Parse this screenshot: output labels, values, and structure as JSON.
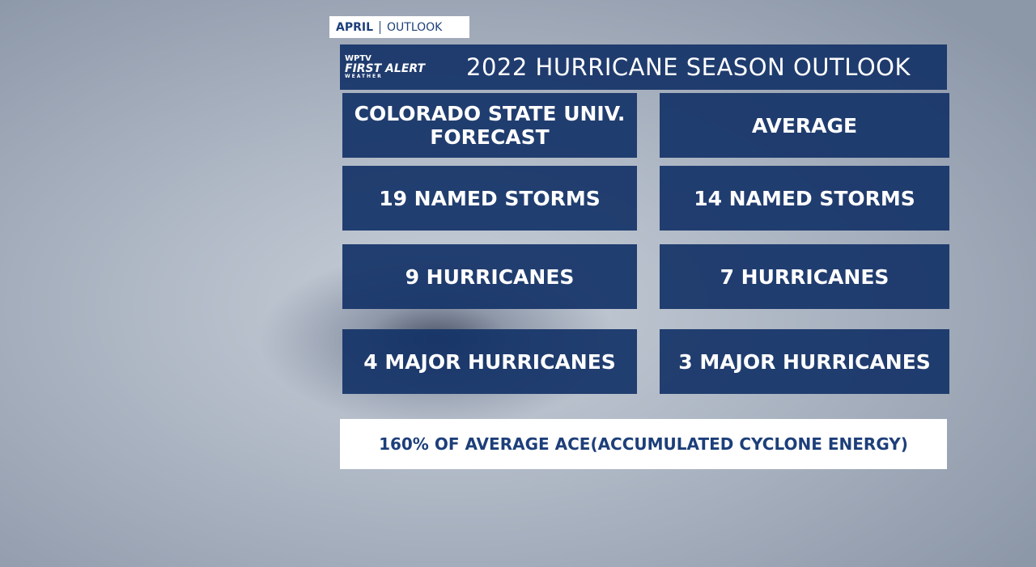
{
  "tag": {
    "month": "APRIL",
    "label": "OUTLOOK"
  },
  "logo": {
    "station": "WPTV",
    "brand": "FIRST ALERT",
    "sub": "WEATHER"
  },
  "header": {
    "title": "2022 HURRICANE SEASON OUTLOOK"
  },
  "table": {
    "columns": [
      "COLORADO STATE UNIV. FORECAST",
      "AVERAGE"
    ],
    "rows": [
      [
        "19 NAMED STORMS",
        "14 NAMED STORMS"
      ],
      [
        "9 HURRICANES",
        "7 HURRICANES"
      ],
      [
        "4 MAJOR HURRICANES",
        "3 MAJOR HURRICANES"
      ]
    ]
  },
  "footer": {
    "note": "160% OF AVERAGE ACE(ACCUMULATED CYCLONE ENERGY)"
  }
}
